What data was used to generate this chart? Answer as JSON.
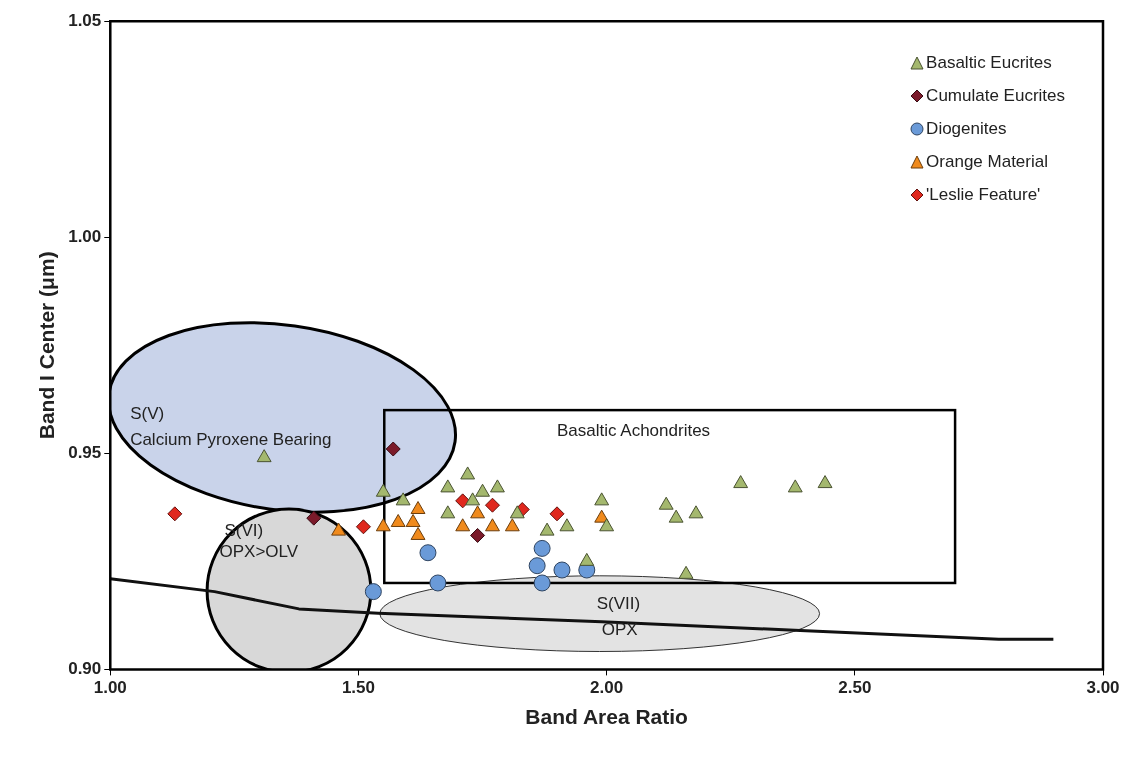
{
  "chart_data": {
    "type": "scatter",
    "xlabel": "Band Area Ratio",
    "ylabel": "Band I Center (μm)",
    "xlim": [
      1.0,
      3.0
    ],
    "ylim": [
      0.9,
      1.05
    ],
    "xticks": [
      {
        "value": 1.0,
        "label": "1.00"
      },
      {
        "value": 1.5,
        "label": "1.50"
      },
      {
        "value": 2.0,
        "label": "2.00"
      },
      {
        "value": 2.5,
        "label": "2.50"
      },
      {
        "value": 3.0,
        "label": "3.00"
      }
    ],
    "yticks": [
      {
        "value": 0.9,
        "label": "0.90"
      },
      {
        "value": 0.95,
        "label": "0.95"
      },
      {
        "value": 1.0,
        "label": "1.00"
      },
      {
        "value": 1.05,
        "label": "1.05"
      }
    ],
    "legend": "top right",
    "series": [
      {
        "type": "line",
        "color": "#111111",
        "marker": "none",
        "x": [
          1.0,
          1.21,
          1.38,
          1.54,
          1.99,
          2.39,
          2.79,
          2.9
        ],
        "values": [
          0.921,
          0.918,
          0.914,
          0.913,
          0.911,
          0.909,
          0.907,
          0.907
        ]
      },
      {
        "name": "Basaltic Eucrites",
        "color": "#a4b86e",
        "marker": "triangle",
        "x": [
          1.31,
          1.55,
          1.59,
          1.68,
          1.72,
          1.75,
          1.78,
          1.68,
          1.73,
          1.82,
          1.88,
          1.92,
          1.99,
          2.0,
          2.12,
          2.14,
          2.18,
          1.96,
          2.16,
          2.27,
          2.38,
          2.44
        ],
        "values": [
          0.949,
          0.941,
          0.939,
          0.942,
          0.945,
          0.941,
          0.942,
          0.936,
          0.939,
          0.936,
          0.932,
          0.933,
          0.939,
          0.933,
          0.938,
          0.935,
          0.936,
          0.925,
          0.922,
          0.943,
          0.942,
          0.943
        ]
      },
      {
        "name": "Cumulate Eucrites",
        "color": "#7b1a2a",
        "marker": "diamond",
        "x": [
          1.57,
          1.74,
          1.41
        ],
        "values": [
          0.951,
          0.931,
          0.935
        ]
      },
      {
        "name": "Diogenites",
        "color": "#6a9ad8",
        "marker": "circle",
        "x": [
          1.53,
          1.64,
          1.66,
          1.87,
          1.86,
          1.91,
          1.96,
          1.87
        ],
        "values": [
          0.918,
          0.927,
          0.92,
          0.928,
          0.924,
          0.923,
          0.923,
          0.92
        ]
      },
      {
        "name": "Orange Material",
        "color": "#f08a1c",
        "marker": "triangle",
        "x": [
          1.46,
          1.55,
          1.58,
          1.61,
          1.62,
          1.62,
          1.71,
          1.74,
          1.77,
          1.81,
          1.99
        ],
        "values": [
          0.932,
          0.933,
          0.934,
          0.934,
          0.937,
          0.931,
          0.933,
          0.936,
          0.933,
          0.933,
          0.935
        ]
      },
      {
        "name": "'Leslie Feature'",
        "color": "#e0281e",
        "marker": "diamond",
        "x": [
          1.13,
          1.51,
          1.71,
          1.77,
          1.83,
          1.9
        ],
        "values": [
          0.936,
          0.933,
          0.939,
          0.938,
          0.937,
          0.936
        ]
      }
    ],
    "annotations": [
      "S(V)",
      "Calcium Pyroxene Bearing",
      "Basaltic Achondrites",
      "S(VI)",
      "OPX>OLV",
      "S(VII)",
      "OPX"
    ]
  }
}
